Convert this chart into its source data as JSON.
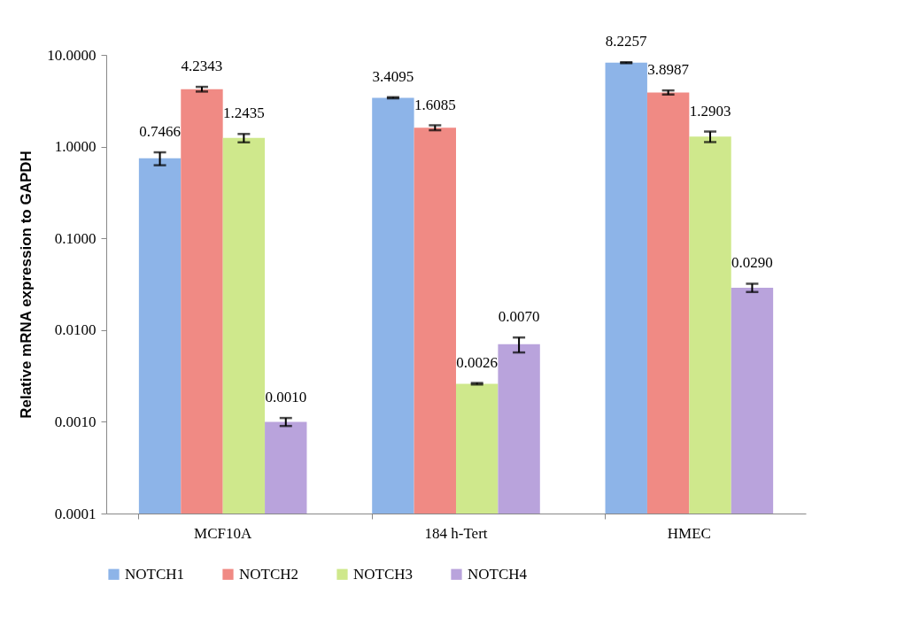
{
  "chart_data": {
    "type": "bar",
    "ylabel": "Relative mRNA expression to GAPDH",
    "categories": [
      "MCF10A",
      "184 h-Tert",
      "HMEC"
    ],
    "series": [
      {
        "name": "NOTCH1",
        "color": "#8db4e8",
        "values": [
          0.7466,
          3.4095,
          8.2257
        ],
        "value_labels": [
          "0.7466",
          "3.4095",
          "8.2257"
        ],
        "errors": [
          0.12,
          0.05,
          0.1
        ]
      },
      {
        "name": "NOTCH2",
        "color": "#f08a84",
        "values": [
          4.2343,
          1.6085,
          3.8987
        ],
        "value_labels": [
          "4.2343",
          "1.6085",
          "3.8987"
        ],
        "errors": [
          0.25,
          0.1,
          0.2
        ]
      },
      {
        "name": "NOTCH3",
        "color": "#cfe88c",
        "values": [
          1.2435,
          0.0026,
          1.2903
        ],
        "value_labels": [
          "1.2435",
          "0.0026",
          "1.2903"
        ],
        "errors": [
          0.13,
          5e-05,
          0.17
        ]
      },
      {
        "name": "NOTCH4",
        "color": "#b9a3dc",
        "values": [
          0.001,
          0.007,
          0.029
        ],
        "value_labels": [
          "0.0010",
          "0.0070",
          "0.0290"
        ],
        "errors": [
          0.0001,
          0.0013,
          0.003
        ]
      }
    ],
    "log": true,
    "ylim": [
      0.0001,
      10
    ],
    "yticks": [
      {
        "value": 0.0001,
        "label": "0.0001"
      },
      {
        "value": 0.001,
        "label": "0.0010"
      },
      {
        "value": 0.01,
        "label": "0.0100"
      },
      {
        "value": 0.1,
        "label": "0.1000"
      },
      {
        "value": 1,
        "label": "1.0000"
      },
      {
        "value": 10,
        "label": "10.0000"
      }
    ],
    "grid": false,
    "legend": "bottom"
  }
}
